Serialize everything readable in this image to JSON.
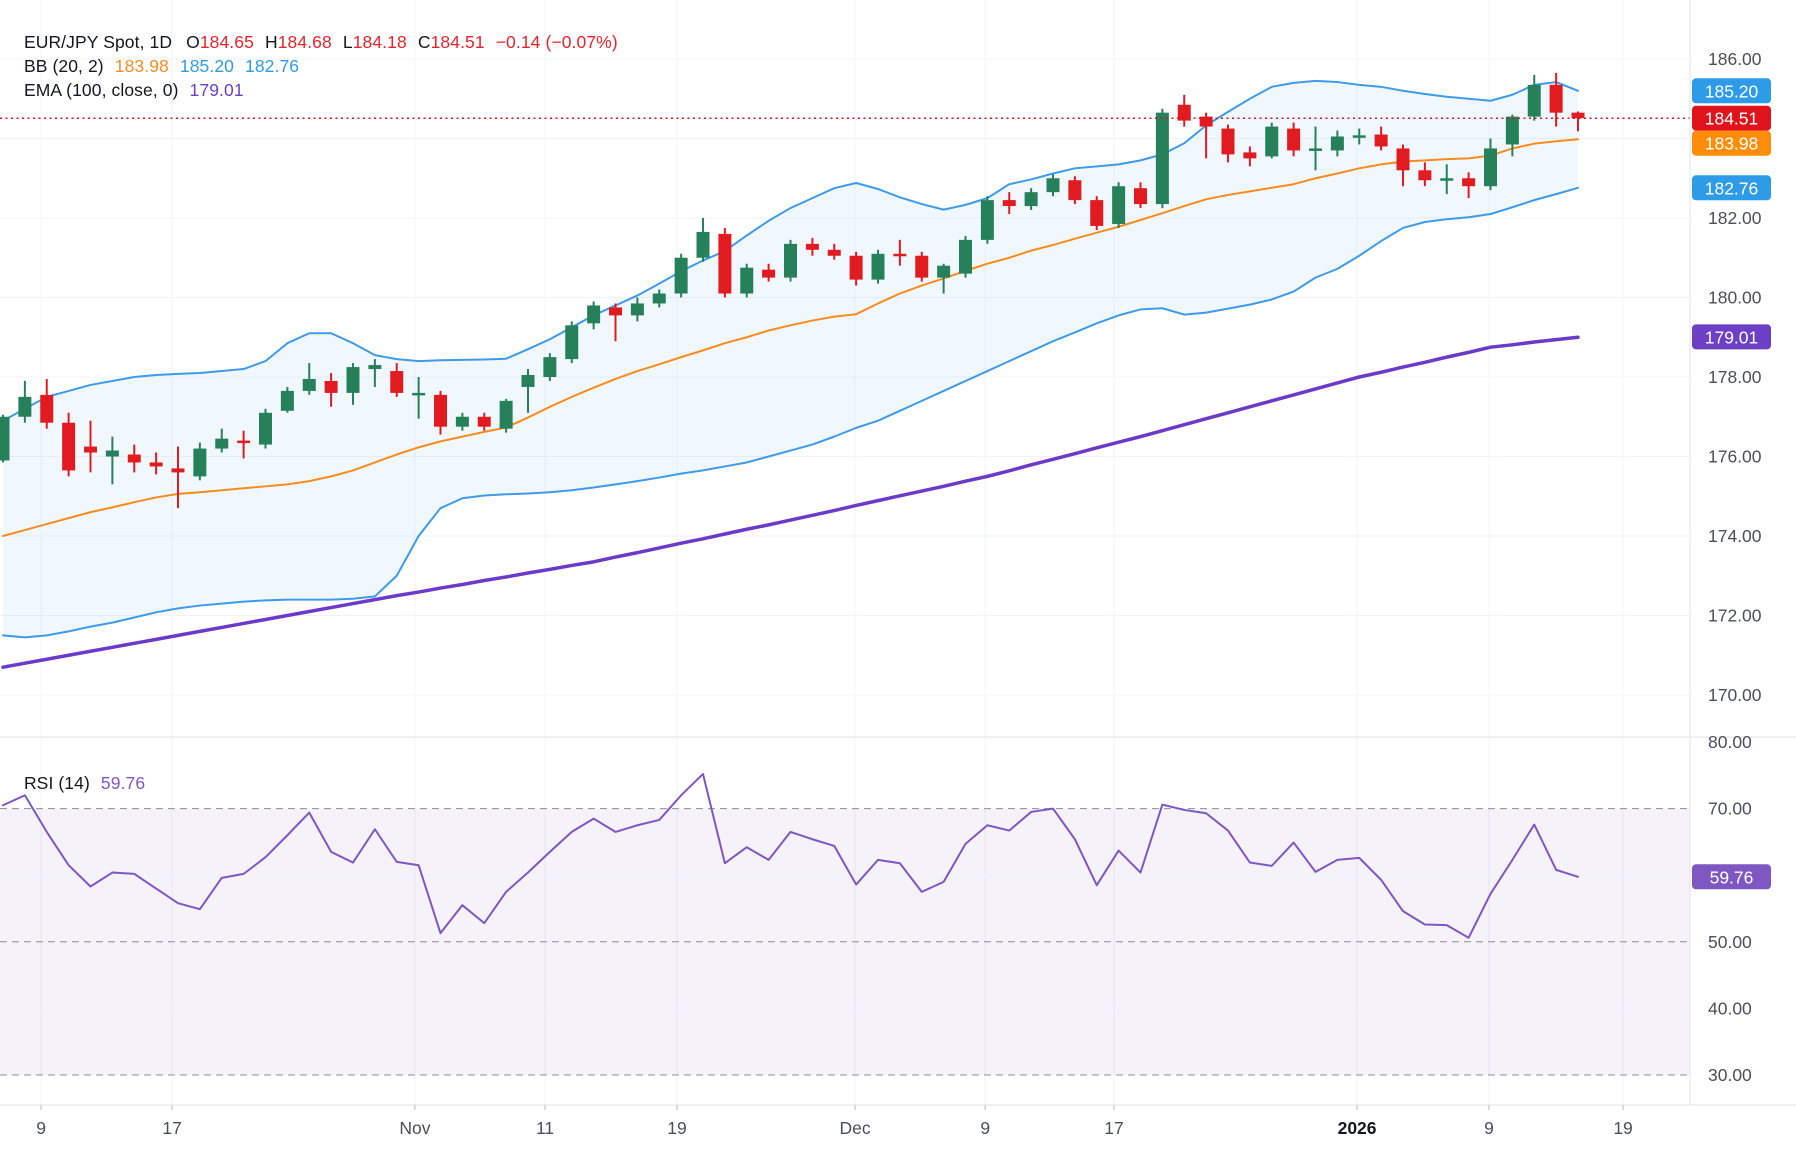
{
  "legend": {
    "symbol": "EUR/JPY Spot, 1D",
    "o_label": "O",
    "o": "184.65",
    "h_label": "H",
    "h": "184.68",
    "l_label": "L",
    "l": "184.18",
    "c_label": "C",
    "c": "184.51",
    "change": "−0.14 (−0.07%)",
    "bb_label": "BB (20, 2)",
    "bb_mid": "183.98",
    "bb_upper": "185.20",
    "bb_lower": "182.76",
    "ema_label": "EMA (100, close, 0)",
    "ema_value": "179.01",
    "rsi_label": "RSI (14)",
    "rsi_value": "59.76"
  },
  "colors": {
    "up": "#26805a",
    "down": "#e11b20",
    "bb": "#3d9be9",
    "bb_fill": "rgba(61,155,233,0.07)",
    "bb_mid": "#f78c1e",
    "ema": "#6b3ac9",
    "rsi": "#7e57c2",
    "rsi_fill": "rgba(126,87,194,0.08)",
    "grid": "#f0f3fa",
    "dash": "#8a8d98",
    "border": "#e0e3eb",
    "axis_text": "#4a4f59",
    "axis_text_bold": "#131722",
    "tick": "#b6b9c1",
    "last": "#dd0f1e",
    "badge_blue": "#2e9be9",
    "badge_red": "#e0131d",
    "badge_orange": "#ff8d0a",
    "badge_purple_dark": "#6c3fc5",
    "badge_purple": "#7e57c2"
  },
  "badges": [
    {
      "label": "185.20",
      "value": 185.2,
      "panel": "price",
      "color": "badge_blue"
    },
    {
      "label": "184.51",
      "value": 184.51,
      "panel": "price",
      "color": "badge_red"
    },
    {
      "label": "183.98",
      "value": 183.98,
      "panel": "price",
      "color": "badge_orange"
    },
    {
      "label": "182.76",
      "value": 182.76,
      "panel": "price",
      "color": "badge_blue"
    },
    {
      "label": "179.01",
      "value": 179.01,
      "panel": "price",
      "color": "badge_purple_dark"
    },
    {
      "label": "59.76",
      "value": 59.76,
      "panel": "rsi",
      "color": "badge_purple"
    }
  ],
  "time_axis": {
    "labels": [
      {
        "label": "9",
        "i": 1.74
      },
      {
        "label": "17",
        "i": 7.73
      },
      {
        "label": "Nov",
        "i": 18.83
      },
      {
        "label": "11",
        "i": 24.78
      },
      {
        "label": "19",
        "i": 30.81
      },
      {
        "label": "Dec",
        "i": 38.95
      },
      {
        "label": "9",
        "i": 44.9
      },
      {
        "label": "17",
        "i": 50.79
      },
      {
        "label": "2026",
        "i": 61.9,
        "bold": true
      },
      {
        "label": "9",
        "i": 67.93
      },
      {
        "label": "19",
        "i": 74.06
      }
    ]
  },
  "chart_data": [
    {
      "type": "candlestick",
      "title": "EUR/JPY Spot, 1D",
      "ylim": [
        168.9,
        187.5
      ],
      "legend_position": "top-left",
      "grid": true,
      "last_price": 184.51,
      "price_ticks": [
        {
          "v": 186,
          "label": "186.00"
        },
        {
          "v": 184,
          "label": ""
        },
        {
          "v": 182,
          "label": "182.00"
        },
        {
          "v": 180,
          "label": "180.00"
        },
        {
          "v": 178,
          "label": "178.00"
        },
        {
          "v": 176,
          "label": "176.00"
        },
        {
          "v": 174,
          "label": "174.00"
        },
        {
          "v": 172,
          "label": "172.00"
        },
        {
          "v": 170,
          "label": "170.00"
        }
      ],
      "candles": [
        [
          175.9,
          177.05,
          175.85,
          177.0
        ],
        [
          177.0,
          177.9,
          176.85,
          177.5
        ],
        [
          177.55,
          177.95,
          176.7,
          176.85
        ],
        [
          176.85,
          177.1,
          175.5,
          175.65
        ],
        [
          176.25,
          176.9,
          175.6,
          176.1
        ],
        [
          176.0,
          176.5,
          175.3,
          176.15
        ],
        [
          176.05,
          176.3,
          175.6,
          175.85
        ],
        [
          175.85,
          176.1,
          175.55,
          175.75
        ],
        [
          175.7,
          176.25,
          174.7,
          175.6
        ],
        [
          175.5,
          176.35,
          175.4,
          176.2
        ],
        [
          176.2,
          176.7,
          176.1,
          176.45
        ],
        [
          176.4,
          176.65,
          175.95,
          176.35
        ],
        [
          176.3,
          177.2,
          176.2,
          177.1
        ],
        [
          177.15,
          177.75,
          177.1,
          177.65
        ],
        [
          177.65,
          178.35,
          177.55,
          177.95
        ],
        [
          177.9,
          178.1,
          177.25,
          177.6
        ],
        [
          177.6,
          178.35,
          177.3,
          178.25
        ],
        [
          178.2,
          178.45,
          177.75,
          178.3
        ],
        [
          178.15,
          178.35,
          177.5,
          177.6
        ],
        [
          177.55,
          178.0,
          176.95,
          177.6
        ],
        [
          177.55,
          177.65,
          176.55,
          176.75
        ],
        [
          176.75,
          177.1,
          176.65,
          177.0
        ],
        [
          177.0,
          177.1,
          176.65,
          176.75
        ],
        [
          176.7,
          177.45,
          176.6,
          177.4
        ],
        [
          177.75,
          178.2,
          177.1,
          178.05
        ],
        [
          178.0,
          178.6,
          177.9,
          178.5
        ],
        [
          178.45,
          179.4,
          178.35,
          179.3
        ],
        [
          179.35,
          179.9,
          179.2,
          179.8
        ],
        [
          179.75,
          179.85,
          178.9,
          179.55
        ],
        [
          179.55,
          180.0,
          179.4,
          179.85
        ],
        [
          179.85,
          180.2,
          179.75,
          180.1
        ],
        [
          180.1,
          181.1,
          180.0,
          181.0
        ],
        [
          181.0,
          182.0,
          180.9,
          181.65
        ],
        [
          181.6,
          181.75,
          180.0,
          180.1
        ],
        [
          180.1,
          180.85,
          180.0,
          180.75
        ],
        [
          180.7,
          180.85,
          180.4,
          180.5
        ],
        [
          180.5,
          181.45,
          180.4,
          181.35
        ],
        [
          181.35,
          181.5,
          181.05,
          181.2
        ],
        [
          181.2,
          181.35,
          180.95,
          181.05
        ],
        [
          181.05,
          181.15,
          180.3,
          180.45
        ],
        [
          180.45,
          181.2,
          180.35,
          181.1
        ],
        [
          181.1,
          181.45,
          180.8,
          181.05
        ],
        [
          181.05,
          181.15,
          180.4,
          180.5
        ],
        [
          180.5,
          180.85,
          180.1,
          180.8
        ],
        [
          180.6,
          181.55,
          180.5,
          181.45
        ],
        [
          181.45,
          182.55,
          181.35,
          182.45
        ],
        [
          182.45,
          182.65,
          182.1,
          182.3
        ],
        [
          182.3,
          182.75,
          182.2,
          182.65
        ],
        [
          182.65,
          183.1,
          182.55,
          183.0
        ],
        [
          182.95,
          183.05,
          182.35,
          182.45
        ],
        [
          182.45,
          182.55,
          181.7,
          181.8
        ],
        [
          181.85,
          182.9,
          181.75,
          182.8
        ],
        [
          182.75,
          182.9,
          182.25,
          182.35
        ],
        [
          182.35,
          184.75,
          182.25,
          184.65
        ],
        [
          184.85,
          185.1,
          184.3,
          184.45
        ],
        [
          184.55,
          184.65,
          183.5,
          184.3
        ],
        [
          184.25,
          184.35,
          183.4,
          183.6
        ],
        [
          183.65,
          183.8,
          183.3,
          183.5
        ],
        [
          183.55,
          184.4,
          183.5,
          184.3
        ],
        [
          184.25,
          184.4,
          183.55,
          183.7
        ],
        [
          183.7,
          184.3,
          183.2,
          183.75
        ],
        [
          183.7,
          184.2,
          183.55,
          184.05
        ],
        [
          184.05,
          184.25,
          183.85,
          184.08
        ],
        [
          184.1,
          184.3,
          183.7,
          183.8
        ],
        [
          183.75,
          183.85,
          182.8,
          183.2
        ],
        [
          183.2,
          183.4,
          182.8,
          182.95
        ],
        [
          182.95,
          183.35,
          182.6,
          183.0
        ],
        [
          183.0,
          183.15,
          182.5,
          182.8
        ],
        [
          182.8,
          184.0,
          182.7,
          183.75
        ],
        [
          183.85,
          184.6,
          183.55,
          184.55
        ],
        [
          184.55,
          185.6,
          184.45,
          185.35
        ],
        [
          185.35,
          185.65,
          184.3,
          184.65
        ],
        [
          184.65,
          184.68,
          184.18,
          184.51
        ]
      ],
      "bb_upper": [
        176.9,
        177.2,
        177.5,
        177.65,
        177.8,
        177.9,
        178.0,
        178.05,
        178.08,
        178.1,
        178.15,
        178.2,
        178.4,
        178.85,
        179.1,
        179.1,
        178.85,
        178.55,
        178.45,
        178.4,
        178.42,
        178.43,
        178.44,
        178.46,
        178.7,
        178.95,
        179.25,
        179.55,
        179.8,
        180.05,
        180.35,
        180.66,
        180.93,
        181.17,
        181.56,
        181.93,
        182.25,
        182.5,
        182.75,
        182.88,
        182.73,
        182.52,
        182.35,
        182.21,
        182.33,
        182.5,
        182.85,
        182.97,
        183.12,
        183.25,
        183.3,
        183.35,
        183.45,
        183.6,
        183.88,
        184.33,
        184.67,
        185.0,
        185.3,
        185.4,
        185.45,
        185.42,
        185.35,
        185.3,
        185.2,
        185.12,
        185.05,
        185.0,
        184.95,
        185.1,
        185.35,
        185.42,
        185.2
      ],
      "bb_mid": [
        174.0,
        174.15,
        174.3,
        174.45,
        174.6,
        174.72,
        174.85,
        174.97,
        175.06,
        175.1,
        175.15,
        175.2,
        175.25,
        175.3,
        175.38,
        175.5,
        175.65,
        175.85,
        176.05,
        176.23,
        176.38,
        176.5,
        176.62,
        176.73,
        176.98,
        177.25,
        177.5,
        177.73,
        177.95,
        178.15,
        178.32,
        178.5,
        178.67,
        178.85,
        179.0,
        179.17,
        179.3,
        179.42,
        179.52,
        179.58,
        179.85,
        180.1,
        180.3,
        180.48,
        180.67,
        180.85,
        181.0,
        181.18,
        181.32,
        181.48,
        181.63,
        181.78,
        181.95,
        182.12,
        182.3,
        182.47,
        182.58,
        182.67,
        182.76,
        182.85,
        183.0,
        183.12,
        183.25,
        183.35,
        183.42,
        183.45,
        183.48,
        183.5,
        183.57,
        183.75,
        183.87,
        183.93,
        183.98
      ],
      "bb_lower": [
        171.5,
        171.45,
        171.5,
        171.6,
        171.72,
        171.82,
        171.95,
        172.08,
        172.18,
        172.25,
        172.3,
        172.35,
        172.38,
        172.4,
        172.4,
        172.4,
        172.42,
        172.48,
        173.0,
        174.0,
        174.7,
        174.95,
        175.02,
        175.05,
        175.07,
        175.1,
        175.15,
        175.22,
        175.3,
        175.38,
        175.47,
        175.57,
        175.65,
        175.75,
        175.85,
        176.0,
        176.15,
        176.3,
        176.5,
        176.72,
        176.9,
        177.15,
        177.4,
        177.65,
        177.9,
        178.15,
        178.4,
        178.65,
        178.9,
        179.12,
        179.35,
        179.55,
        179.7,
        179.73,
        179.57,
        179.62,
        179.72,
        179.82,
        179.95,
        180.15,
        180.5,
        180.72,
        181.05,
        181.42,
        181.75,
        181.9,
        181.97,
        182.02,
        182.1,
        182.27,
        182.45,
        182.6,
        182.76
      ],
      "ema": [
        170.7,
        170.8,
        170.9,
        171.0,
        171.1,
        171.2,
        171.3,
        171.4,
        171.5,
        171.6,
        171.7,
        171.8,
        171.9,
        172.0,
        172.1,
        172.2,
        172.3,
        172.4,
        172.5,
        172.59,
        172.69,
        172.78,
        172.88,
        172.97,
        173.07,
        173.16,
        173.26,
        173.35,
        173.47,
        173.58,
        173.7,
        173.82,
        173.93,
        174.05,
        174.17,
        174.28,
        174.4,
        174.52,
        174.64,
        174.77,
        174.89,
        175.01,
        175.13,
        175.25,
        175.38,
        175.5,
        175.64,
        175.79,
        175.93,
        176.07,
        176.22,
        176.36,
        176.5,
        176.65,
        176.8,
        176.95,
        177.1,
        177.25,
        177.4,
        177.55,
        177.7,
        177.85,
        178.0,
        178.12,
        178.25,
        178.37,
        178.5,
        178.62,
        178.75,
        178.81,
        178.88,
        178.94,
        179.0
      ]
    },
    {
      "type": "line",
      "name": "RSI (14)",
      "ylim": [
        25.5,
        80
      ],
      "band": [
        30,
        70
      ],
      "ticks": [
        {
          "v": 80,
          "label": "80.00",
          "style": "solid"
        },
        {
          "v": 70,
          "label": "70.00",
          "style": "dashed"
        },
        {
          "v": 60,
          "label": "",
          "style": "solid"
        },
        {
          "v": 50,
          "label": "50.00",
          "style": "dashed"
        },
        {
          "v": 40,
          "label": "40.00",
          "style": "solid"
        },
        {
          "v": 30,
          "label": "30.00",
          "style": "dashed"
        }
      ],
      "values": [
        70.5,
        72.0,
        66.5,
        61.5,
        58.3,
        60.4,
        60.2,
        58.0,
        55.8,
        54.9,
        59.6,
        60.2,
        62.7,
        66.0,
        69.4,
        63.5,
        61.9,
        66.9,
        62.0,
        61.5,
        51.3,
        55.5,
        52.8,
        57.5,
        60.4,
        63.5,
        66.5,
        68.5,
        66.5,
        67.5,
        68.3,
        72.0,
        75.2,
        61.8,
        64.2,
        62.3,
        66.5,
        65.4,
        64.4,
        58.6,
        62.3,
        61.8,
        57.5,
        59.0,
        64.7,
        67.5,
        66.7,
        69.5,
        70.0,
        65.4,
        58.5,
        63.7,
        60.4,
        70.6,
        69.8,
        69.3,
        66.7,
        61.9,
        61.4,
        64.9,
        60.5,
        62.3,
        62.6,
        59.3,
        54.6,
        52.6,
        52.5,
        50.6,
        57.2,
        62.3,
        67.6,
        60.8,
        59.76
      ]
    }
  ]
}
